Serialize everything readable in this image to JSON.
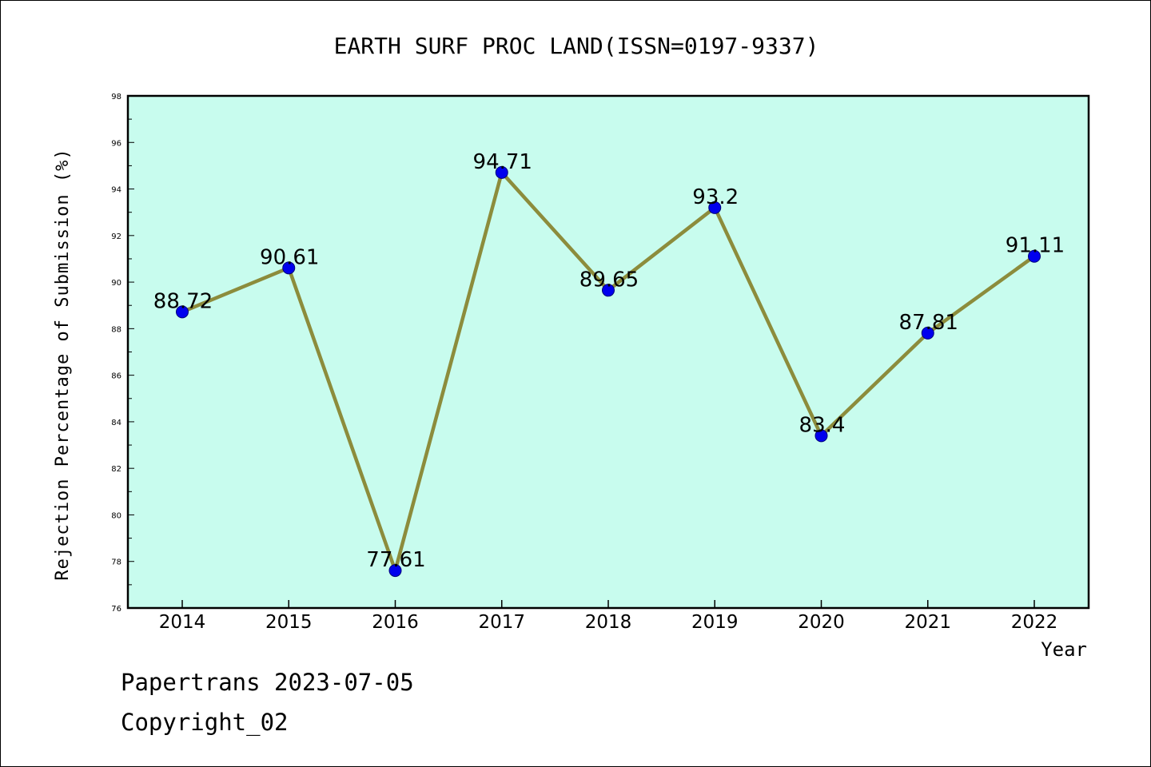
{
  "chart_data": {
    "type": "line",
    "title": "EARTH SURF PROC LAND(ISSN=0197-9337)",
    "xlabel": "Year",
    "ylabel": "Rejection Percentage of Submission (%)",
    "categories": [
      "2014",
      "2015",
      "2016",
      "2017",
      "2018",
      "2019",
      "2020",
      "2021",
      "2022"
    ],
    "series": [
      {
        "values": [
          88.72,
          90.61,
          77.61,
          94.71,
          89.65,
          93.2,
          83.4,
          87.81,
          91.11
        ],
        "labels": [
          "88.72",
          "90.61",
          "77.61",
          "94.71",
          "89.65",
          "93.2",
          "83.4",
          "87.81",
          "91.11"
        ]
      }
    ],
    "ylim": [
      76,
      98
    ],
    "yticks": [
      "76",
      "78",
      "80",
      "82",
      "84",
      "86",
      "88",
      "90",
      "92",
      "94",
      "96",
      "98"
    ],
    "grid": false,
    "colors": {
      "plot_background": "#c8fcee",
      "line": "#8c8c3c",
      "marker": "#0000ee"
    }
  },
  "footer": {
    "line1": "Papertrans 2023-07-05",
    "line2": "Copyright_02"
  }
}
